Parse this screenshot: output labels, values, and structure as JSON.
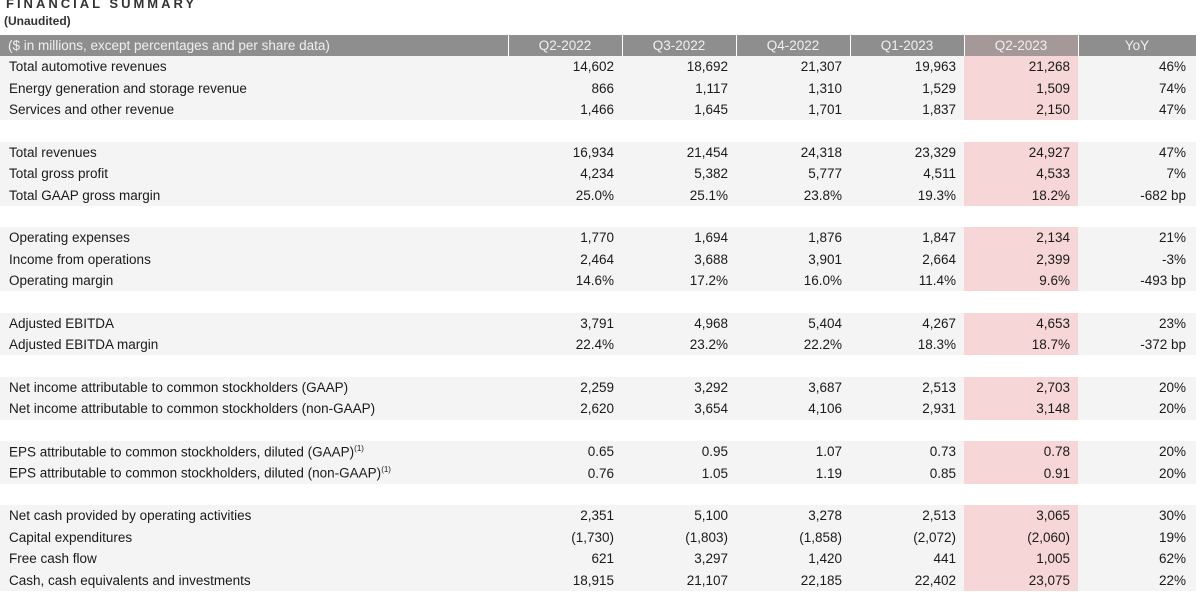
{
  "title": "FINANCIAL SUMMARY",
  "subtitle": "(Unaudited)",
  "header": {
    "label": "($ in millions, except percentages and per share data)",
    "columns": [
      "Q2-2022",
      "Q3-2022",
      "Q4-2022",
      "Q1-2023",
      "Q2-2023",
      "YoY"
    ]
  },
  "groups": [
    [
      {
        "label": "Total automotive revenues",
        "note": "",
        "values": [
          "14,602",
          "18,692",
          "21,307",
          "19,963",
          "21,268",
          "46%"
        ]
      },
      {
        "label": "Energy generation and storage revenue",
        "note": "",
        "values": [
          "866",
          "1,117",
          "1,310",
          "1,529",
          "1,509",
          "74%"
        ]
      },
      {
        "label": "Services and other revenue",
        "note": "",
        "values": [
          "1,466",
          "1,645",
          "1,701",
          "1,837",
          "2,150",
          "47%"
        ]
      }
    ],
    [
      {
        "label": "Total revenues",
        "note": "",
        "values": [
          "16,934",
          "21,454",
          "24,318",
          "23,329",
          "24,927",
          "47%"
        ]
      },
      {
        "label": "Total gross profit",
        "note": "",
        "values": [
          "4,234",
          "5,382",
          "5,777",
          "4,511",
          "4,533",
          "7%"
        ]
      },
      {
        "label": "Total GAAP gross margin",
        "note": "",
        "values": [
          "25.0%",
          "25.1%",
          "23.8%",
          "19.3%",
          "18.2%",
          "-682 bp"
        ]
      }
    ],
    [
      {
        "label": "Operating expenses",
        "note": "",
        "values": [
          "1,770",
          "1,694",
          "1,876",
          "1,847",
          "2,134",
          "21%"
        ]
      },
      {
        "label": "Income from operations",
        "note": "",
        "values": [
          "2,464",
          "3,688",
          "3,901",
          "2,664",
          "2,399",
          "-3%"
        ]
      },
      {
        "label": "Operating margin",
        "note": "",
        "values": [
          "14.6%",
          "17.2%",
          "16.0%",
          "11.4%",
          "9.6%",
          "-493 bp"
        ]
      }
    ],
    [
      {
        "label": "Adjusted EBITDA",
        "note": "",
        "values": [
          "3,791",
          "4,968",
          "5,404",
          "4,267",
          "4,653",
          "23%"
        ]
      },
      {
        "label": "Adjusted EBITDA margin",
        "note": "",
        "values": [
          "22.4%",
          "23.2%",
          "22.2%",
          "18.3%",
          "18.7%",
          "-372 bp"
        ]
      }
    ],
    [
      {
        "label": "Net income attributable to common stockholders (GAAP)",
        "note": "",
        "values": [
          "2,259",
          "3,292",
          "3,687",
          "2,513",
          "2,703",
          "20%"
        ]
      },
      {
        "label": "Net income attributable to common stockholders (non-GAAP)",
        "note": "",
        "values": [
          "2,620",
          "3,654",
          "4,106",
          "2,931",
          "3,148",
          "20%"
        ]
      }
    ],
    [
      {
        "label": "EPS attributable to common stockholders, diluted (GAAP)",
        "note": "(1)",
        "values": [
          "0.65",
          "0.95",
          "1.07",
          "0.73",
          "0.78",
          "20%"
        ]
      },
      {
        "label": "EPS attributable to common stockholders, diluted (non-GAAP)",
        "note": "(1)",
        "values": [
          "0.76",
          "1.05",
          "1.19",
          "0.85",
          "0.91",
          "20%"
        ]
      }
    ],
    [
      {
        "label": "Net cash provided by operating activities",
        "note": "",
        "values": [
          "2,351",
          "5,100",
          "3,278",
          "2,513",
          "3,065",
          "30%"
        ]
      },
      {
        "label": "Capital expenditures",
        "note": "",
        "values": [
          "(1,730)",
          "(1,803)",
          "(1,858)",
          "(2,072)",
          "(2,060)",
          "19%"
        ]
      },
      {
        "label": "Free cash flow",
        "note": "",
        "values": [
          "621",
          "3,297",
          "1,420",
          "441",
          "1,005",
          "62%"
        ]
      },
      {
        "label": "Cash, cash equivalents and investments",
        "note": "",
        "values": [
          "18,915",
          "21,107",
          "22,185",
          "22,402",
          "23,075",
          "22%"
        ]
      }
    ]
  ]
}
